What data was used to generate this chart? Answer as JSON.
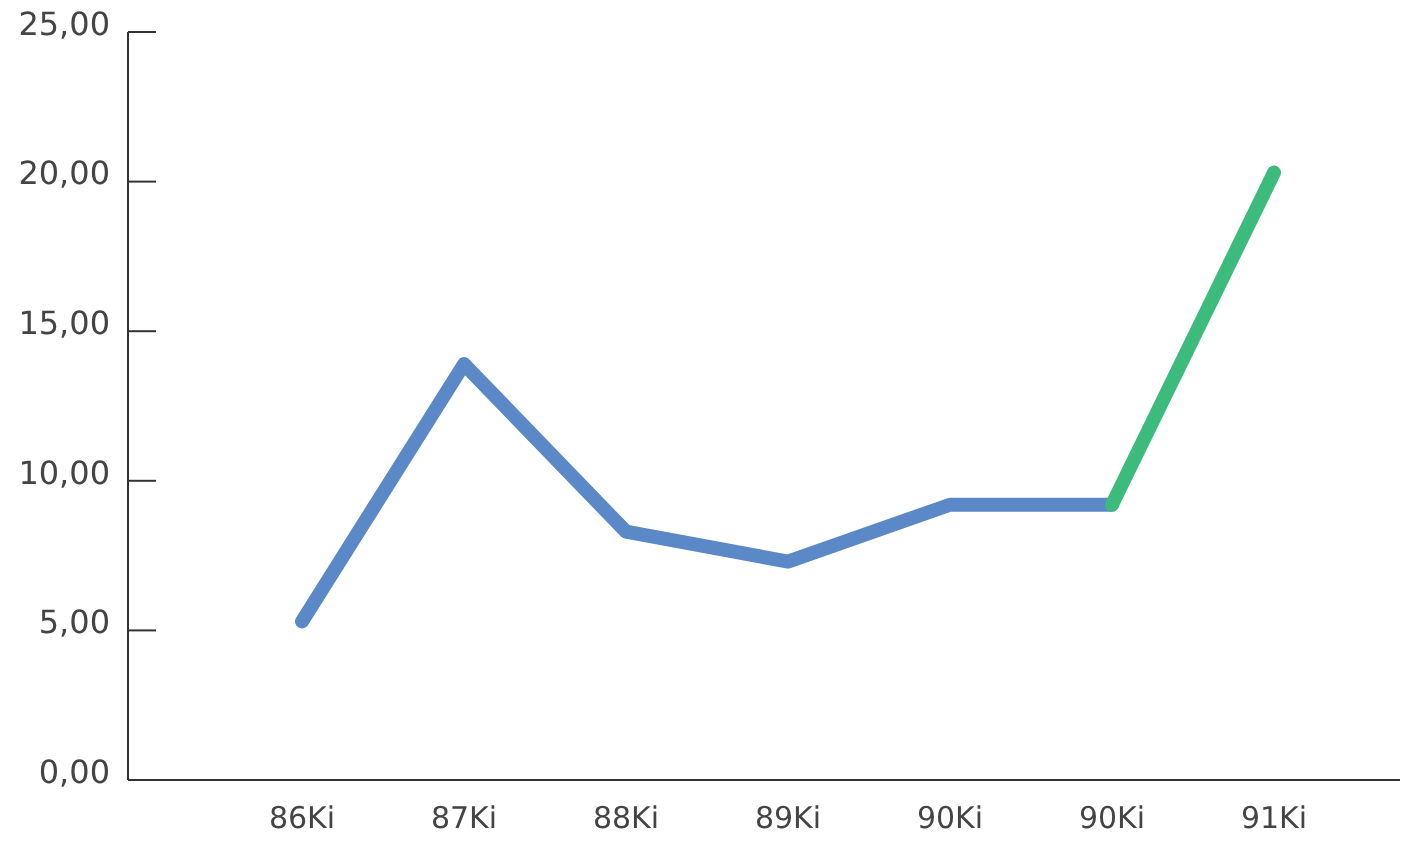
{
  "chart_data": {
    "type": "line",
    "categories": [
      "86Ki",
      "87Ki",
      "88Ki",
      "89Ki",
      "90Ki",
      "90Ki",
      "91Ki"
    ],
    "series": [
      {
        "color": "#5b88c6",
        "values": [
          5.3,
          13.9,
          8.3,
          7.3,
          9.2,
          9.2,
          null
        ]
      },
      {
        "color": "#3dbb7c",
        "values": [
          null,
          null,
          null,
          null,
          null,
          9.2,
          20.3
        ]
      }
    ],
    "ylim": [
      0,
      25
    ],
    "yticks": [
      {
        "value": 0,
        "label": "0,00"
      },
      {
        "value": 5,
        "label": "5,00"
      },
      {
        "value": 10,
        "label": "10,00"
      },
      {
        "value": 15,
        "label": "15,00"
      },
      {
        "value": 20,
        "label": "20,00"
      },
      {
        "value": 25,
        "label": "25,00"
      }
    ],
    "marker": "none",
    "line_style": "solid"
  }
}
